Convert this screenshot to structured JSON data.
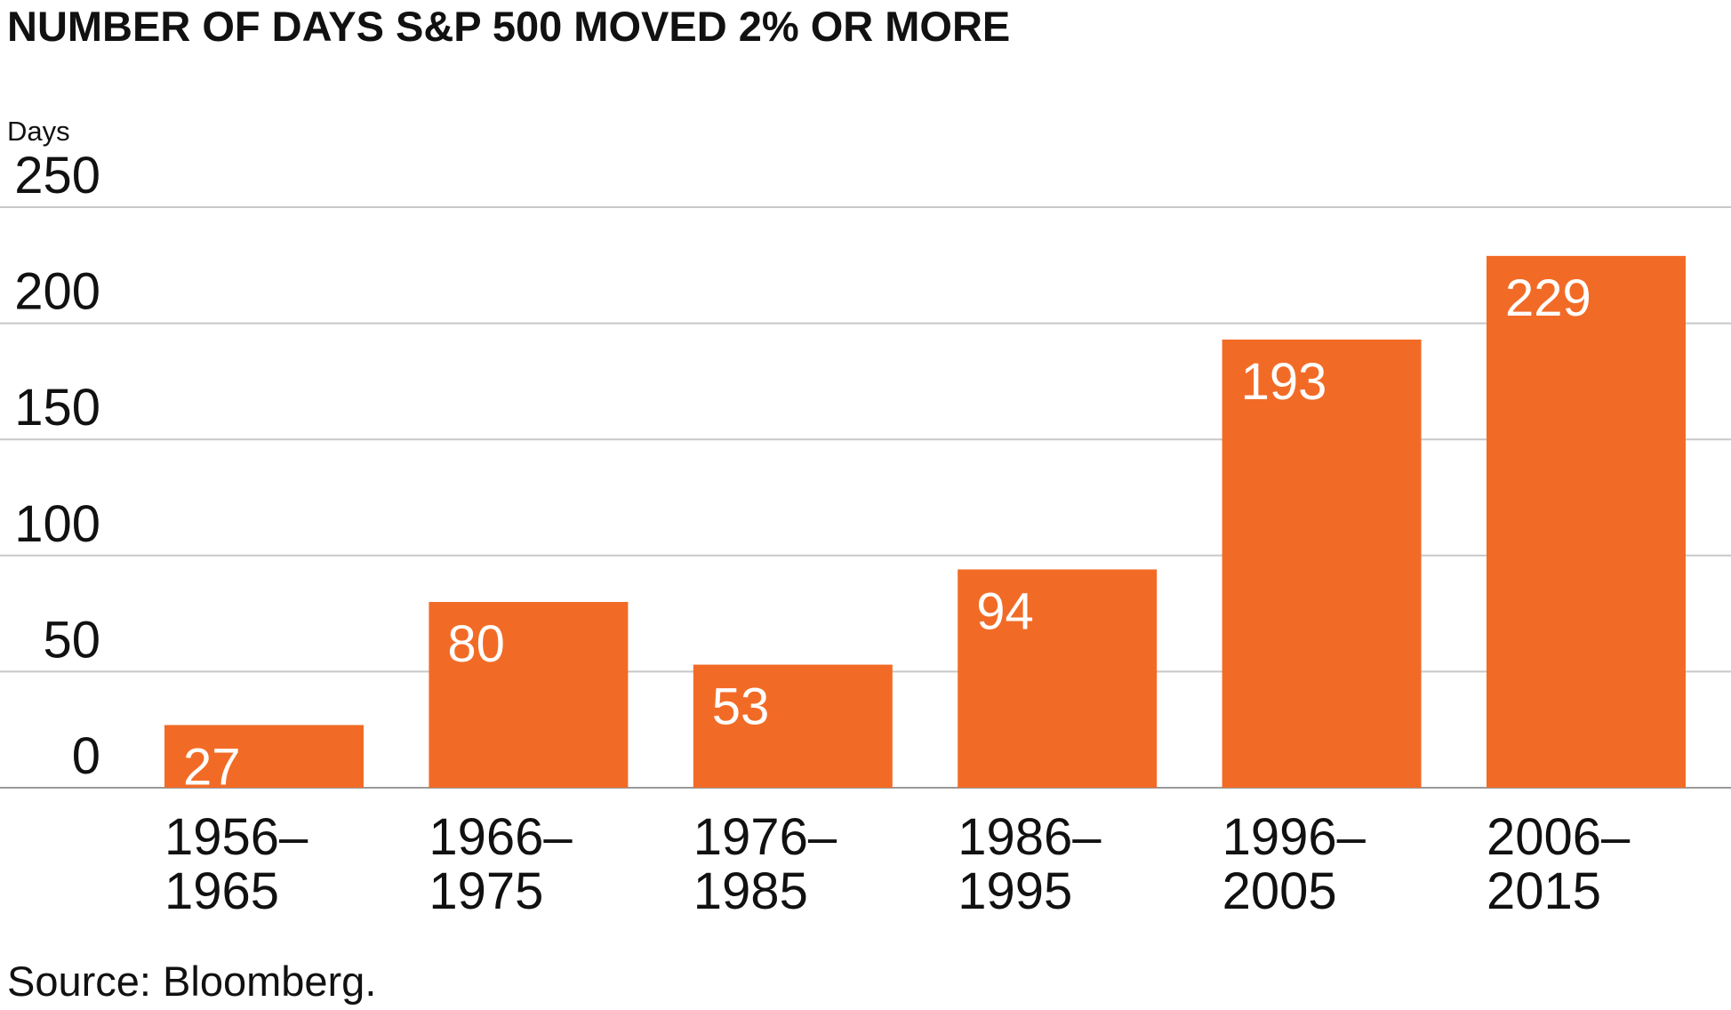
{
  "chart_data": {
    "type": "bar",
    "title": "NUMBER OF DAYS S&P 500 MOVED 2% OR MORE",
    "ylabel": "Days",
    "xlabel": "",
    "categories": [
      [
        "1956–",
        "1965"
      ],
      [
        "1966–",
        "1975"
      ],
      [
        "1976–",
        "1985"
      ],
      [
        "1986–",
        "1995"
      ],
      [
        "1996–",
        "2005"
      ],
      [
        "2006–",
        "2015"
      ]
    ],
    "values": [
      27,
      80,
      53,
      94,
      193,
      229
    ],
    "data_labels": [
      "27",
      "80",
      "53",
      "94",
      "193",
      "229"
    ],
    "ylim": [
      0,
      250
    ],
    "yticks": [
      0,
      50,
      100,
      150,
      200,
      250
    ],
    "ytick_labels": [
      "0",
      "50",
      "100",
      "150",
      "200",
      "250"
    ],
    "grid": true,
    "colors": {
      "bar": "#F26B26",
      "grid": "#c8c8c8",
      "text": "#111111",
      "data_label": "#ffffff"
    }
  },
  "footer": {
    "source": "Source: Bloomberg."
  }
}
